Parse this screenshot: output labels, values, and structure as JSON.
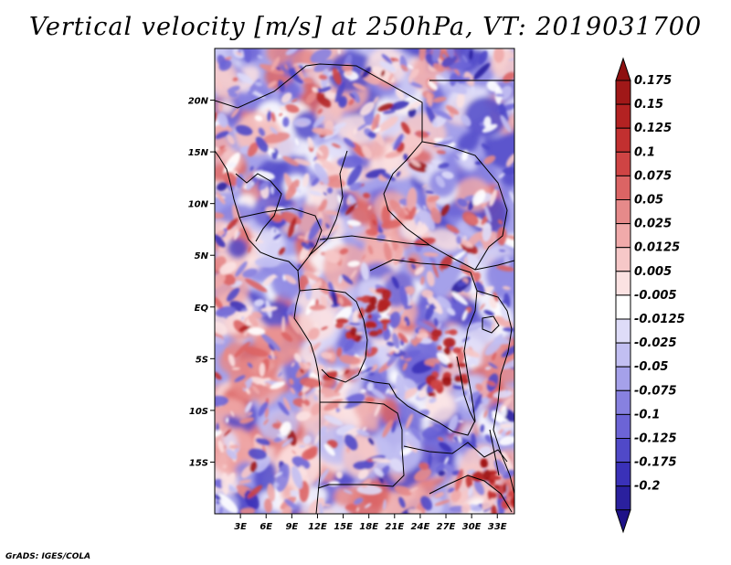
{
  "title": "Vertical velocity [m/s] at 250hPa, VT: 2019031700",
  "credit": "GrADS: IGES/COLA",
  "chart_data": {
    "type": "heatmap",
    "title": "Vertical velocity [m/s] at 250hPa, VT: 2019031700",
    "variable": "Vertical velocity",
    "units": "m/s",
    "level": "250hPa",
    "valid_time": "2019031700",
    "xlabel": "",
    "ylabel": "",
    "xlim": [
      0,
      35
    ],
    "ylim": [
      -20,
      25
    ],
    "x_ticks": [
      {
        "value": 3,
        "label": "3E"
      },
      {
        "value": 6,
        "label": "6E"
      },
      {
        "value": 9,
        "label": "9E"
      },
      {
        "value": 12,
        "label": "12E"
      },
      {
        "value": 15,
        "label": "15E"
      },
      {
        "value": 18,
        "label": "18E"
      },
      {
        "value": 21,
        "label": "21E"
      },
      {
        "value": 24,
        "label": "24E"
      },
      {
        "value": 27,
        "label": "27E"
      },
      {
        "value": 30,
        "label": "30E"
      },
      {
        "value": 33,
        "label": "33E"
      }
    ],
    "y_ticks": [
      {
        "value": 20,
        "label": "20N"
      },
      {
        "value": 15,
        "label": "15N"
      },
      {
        "value": 10,
        "label": "10N"
      },
      {
        "value": 5,
        "label": "5N"
      },
      {
        "value": 0,
        "label": "EQ"
      },
      {
        "value": -5,
        "label": "5S"
      },
      {
        "value": -10,
        "label": "10S"
      },
      {
        "value": -15,
        "label": "15S"
      }
    ],
    "colorbar": {
      "levels": [
        {
          "value": 0.175,
          "label": "0.175",
          "color": "#a01818"
        },
        {
          "value": 0.15,
          "label": "0.15",
          "color": "#b32222"
        },
        {
          "value": 0.125,
          "label": "0.125",
          "color": "#c23030"
        },
        {
          "value": 0.1,
          "label": "0.1",
          "color": "#cf4444"
        },
        {
          "value": 0.075,
          "label": "0.075",
          "color": "#db6464"
        },
        {
          "value": 0.05,
          "label": "0.05",
          "color": "#e68a8a"
        },
        {
          "value": 0.025,
          "label": "0.025",
          "color": "#f0aaaa"
        },
        {
          "value": 0.0125,
          "label": "0.0125",
          "color": "#f6c8c8"
        },
        {
          "value": 0.005,
          "label": "0.005",
          "color": "#fbe2e2"
        },
        {
          "value": -0.005,
          "label": "-0.005",
          "color": "#ffffff"
        },
        {
          "value": -0.0125,
          "label": "-0.0125",
          "color": "#dedcf8"
        },
        {
          "value": -0.025,
          "label": "-0.025",
          "color": "#c2bff2"
        },
        {
          "value": -0.05,
          "label": "-0.05",
          "color": "#a5a1ea"
        },
        {
          "value": -0.075,
          "label": "-0.075",
          "color": "#8781e0"
        },
        {
          "value": -0.1,
          "label": "-0.1",
          "color": "#6c64d6"
        },
        {
          "value": -0.125,
          "label": "-0.125",
          "color": "#5049c8"
        },
        {
          "value": -0.175,
          "label": "-0.175",
          "color": "#3a31b8"
        },
        {
          "value": -0.2,
          "label": "-0.2",
          "color": "#2a209e"
        }
      ],
      "top_color": "#8e1010",
      "bottom_color": "#1e1288"
    }
  }
}
